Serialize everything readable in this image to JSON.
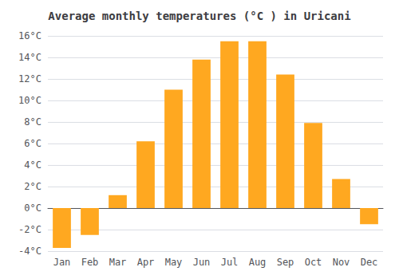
{
  "chart_data": {
    "type": "bar",
    "title": "Average monthly temperatures (°C ) in Uricani",
    "categories": [
      "Jan",
      "Feb",
      "Mar",
      "Apr",
      "May",
      "Jun",
      "Jul",
      "Aug",
      "Sep",
      "Oct",
      "Nov",
      "Dec"
    ],
    "values": [
      -3.7,
      -2.5,
      1.2,
      6.2,
      11.0,
      13.8,
      15.5,
      15.5,
      12.4,
      7.9,
      2.7,
      -1.5
    ],
    "color": "#FFA820",
    "ylim": [
      -4,
      16
    ],
    "yticks": [
      {
        "value": -4,
        "label": "-4°C"
      },
      {
        "value": -2,
        "label": "-2°C"
      },
      {
        "value": 0,
        "label": "0°C"
      },
      {
        "value": 2,
        "label": "2°C"
      },
      {
        "value": 4,
        "label": "4°C"
      },
      {
        "value": 6,
        "label": "6°C"
      },
      {
        "value": 8,
        "label": "8°C"
      },
      {
        "value": 10,
        "label": "10°C"
      },
      {
        "value": 12,
        "label": "12°C"
      },
      {
        "value": 14,
        "label": "14°C"
      },
      {
        "value": 16,
        "label": "16°C"
      }
    ],
    "grid": true
  }
}
